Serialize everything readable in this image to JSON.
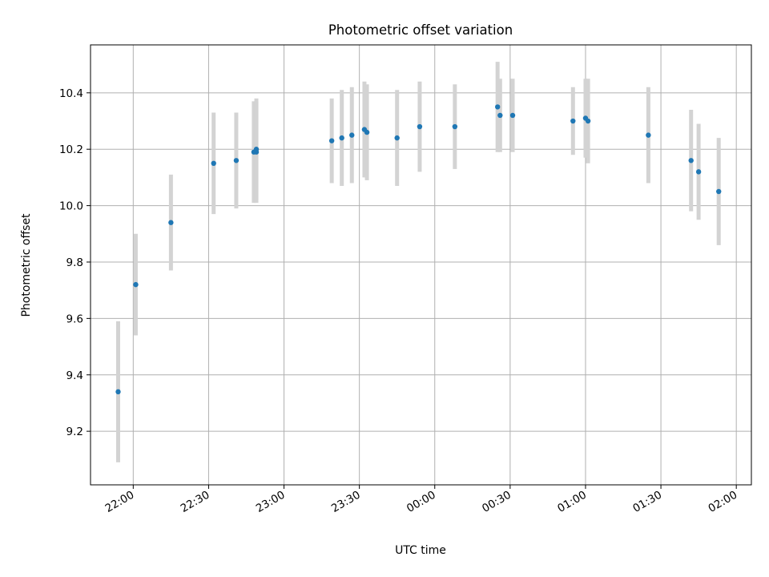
{
  "chart_data": {
    "type": "scatter",
    "title": "Photometric offset variation",
    "xlabel": "UTC time",
    "ylabel": "Photometric offset",
    "grid": true,
    "legend": "none",
    "colors": {
      "marker": "#1f77b4",
      "errorbar": "#d3d3d3",
      "grid": "#b0b0b0"
    },
    "xlim": [
      "21:43",
      "02:06"
    ],
    "ylim": [
      9.01,
      10.57
    ],
    "x_ticks": [
      "22:00",
      "22:30",
      "23:00",
      "23:30",
      "00:00",
      "00:30",
      "01:00",
      "01:30",
      "02:00"
    ],
    "y_ticks": [
      "9.2",
      "9.4",
      "9.6",
      "9.8",
      "10.0",
      "10.2",
      "10.4"
    ],
    "points": [
      {
        "x": "21:54",
        "y": 9.34,
        "err": 0.25
      },
      {
        "x": "22:01",
        "y": 9.72,
        "err": 0.18
      },
      {
        "x": "22:15",
        "y": 9.94,
        "err": 0.17
      },
      {
        "x": "22:32",
        "y": 10.15,
        "err": 0.18
      },
      {
        "x": "22:41",
        "y": 10.16,
        "err": 0.17
      },
      {
        "x": "22:48",
        "y": 10.19,
        "err": 0.18
      },
      {
        "x": "22:49",
        "y": 10.19,
        "err": 0.18
      },
      {
        "x": "22:49",
        "y": 10.2,
        "err": 0.18
      },
      {
        "x": "23:19",
        "y": 10.23,
        "err": 0.15
      },
      {
        "x": "23:23",
        "y": 10.24,
        "err": 0.17
      },
      {
        "x": "23:27",
        "y": 10.25,
        "err": 0.17
      },
      {
        "x": "23:32",
        "y": 10.27,
        "err": 0.17
      },
      {
        "x": "23:33",
        "y": 10.26,
        "err": 0.17
      },
      {
        "x": "23:45",
        "y": 10.24,
        "err": 0.17
      },
      {
        "x": "23:54",
        "y": 10.28,
        "err": 0.16
      },
      {
        "x": "00:08",
        "y": 10.28,
        "err": 0.15
      },
      {
        "x": "00:25",
        "y": 10.35,
        "err": 0.16
      },
      {
        "x": "00:26",
        "y": 10.32,
        "err": 0.13
      },
      {
        "x": "00:31",
        "y": 10.32,
        "err": 0.13
      },
      {
        "x": "00:55",
        "y": 10.3,
        "err": 0.12
      },
      {
        "x": "01:00",
        "y": 10.31,
        "err": 0.14
      },
      {
        "x": "01:01",
        "y": 10.3,
        "err": 0.15
      },
      {
        "x": "01:25",
        "y": 10.25,
        "err": 0.17
      },
      {
        "x": "01:42",
        "y": 10.16,
        "err": 0.18
      },
      {
        "x": "01:45",
        "y": 10.12,
        "err": 0.17
      },
      {
        "x": "01:53",
        "y": 10.05,
        "err": 0.19
      }
    ]
  }
}
